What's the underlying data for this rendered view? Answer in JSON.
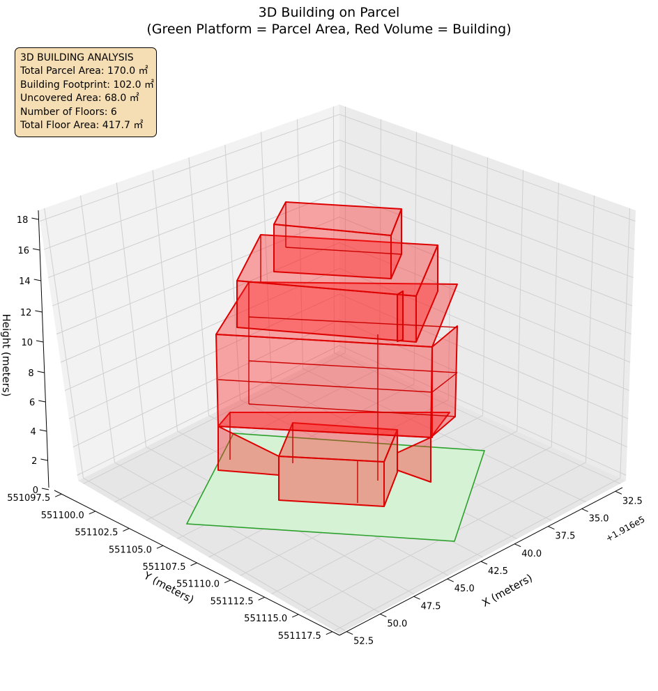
{
  "chart_data": {
    "type": "3d-box",
    "title": "3D Building on Parcel",
    "subtitle": "(Green Platform = Parcel Area, Red Volume = Building)",
    "xlabel": "X (meters)",
    "ylabel": "Y (meters)",
    "zlabel": "Height (meters)",
    "x_offset_label": "+1.916e5",
    "x_ticks": [
      "32.5",
      "35.0",
      "37.5",
      "40.0",
      "42.5",
      "45.0",
      "47.5",
      "50.0",
      "52.5"
    ],
    "y_ticks": [
      "551097.5",
      "551100.0",
      "551102.5",
      "551105.0",
      "551107.5",
      "551110.0",
      "551112.5",
      "551115.0",
      "551117.5"
    ],
    "z_ticks": [
      "0",
      "2",
      "4",
      "6",
      "8",
      "10",
      "12",
      "14",
      "16",
      "18"
    ],
    "grid": true,
    "colors": {
      "parcel_fill": "#90ee90",
      "parcel_edge": "#2ca02c",
      "building_fill": "#ff0000",
      "building_edge": "#dd0000",
      "info_box": "#f5deb3"
    },
    "info_box": {
      "heading": "3D BUILDING ANALYSIS",
      "lines": [
        "Total Parcel Area: 170.0 ㎡",
        "Building Footprint: 102.0 ㎡",
        "Uncovered Area: 68.0 ㎡",
        "Number of Floors: 6",
        "Total Floor Area: 417.7 ㎡"
      ]
    }
  }
}
